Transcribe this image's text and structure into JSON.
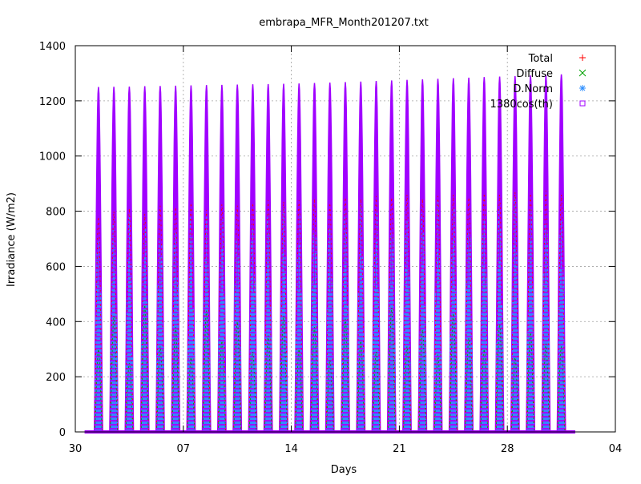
{
  "chart_data": {
    "type": "scatter",
    "title": "embrapa_MFR_Month201207.txt",
    "xlabel": "Days",
    "ylabel": "Irradiance (W/m2)",
    "xlim": [
      "2012-06-30",
      "2012-08-04"
    ],
    "ylim": [
      0,
      1400
    ],
    "x_ticks": [
      {
        "date": "2012-06-30",
        "label": "30"
      },
      {
        "date": "2012-07-07",
        "label": "07"
      },
      {
        "date": "2012-07-14",
        "label": "14"
      },
      {
        "date": "2012-07-21",
        "label": "21"
      },
      {
        "date": "2012-07-28",
        "label": "28"
      },
      {
        "date": "2012-08-04",
        "label": "04"
      }
    ],
    "y_ticks": [
      0,
      200,
      400,
      600,
      800,
      1000,
      1200,
      1400
    ],
    "grid": true,
    "legend_position": "top-right",
    "series": [
      {
        "name": "Total",
        "marker": "+",
        "color": "#ff0000"
      },
      {
        "name": "Diffuse",
        "marker": "x",
        "color": "#00a000"
      },
      {
        "name": "D.Norm",
        "marker": "*",
        "color": "#2f8fff"
      },
      {
        "name": "1380cos(th)",
        "marker": "square",
        "color": "#a000ff"
      }
    ],
    "daily_peaks": {
      "dates": [
        "2012-07-01",
        "2012-07-02",
        "2012-07-03",
        "2012-07-04",
        "2012-07-05",
        "2012-07-06",
        "2012-07-07",
        "2012-07-08",
        "2012-07-09",
        "2012-07-10",
        "2012-07-11",
        "2012-07-12",
        "2012-07-13",
        "2012-07-14",
        "2012-07-15",
        "2012-07-16",
        "2012-07-17",
        "2012-07-18",
        "2012-07-19",
        "2012-07-20",
        "2012-07-21",
        "2012-07-22",
        "2012-07-23",
        "2012-07-24",
        "2012-07-25",
        "2012-07-26",
        "2012-07-27",
        "2012-07-28",
        "2012-07-29",
        "2012-07-30",
        "2012-07-31"
      ],
      "cos_peak": [
        1250,
        1251,
        1252,
        1253,
        1254,
        1255,
        1256,
        1257,
        1258,
        1259,
        1260,
        1261,
        1262,
        1263,
        1265,
        1266,
        1268,
        1270,
        1272,
        1274,
        1276,
        1278,
        1280,
        1282,
        1284,
        1286,
        1288,
        1290,
        1292,
        1294,
        1296
      ],
      "total_peak": [
        780,
        800,
        810,
        790,
        820,
        815,
        830,
        805,
        825,
        820,
        830,
        840,
        835,
        840,
        845,
        830,
        850,
        845,
        855,
        850,
        860,
        845,
        855,
        860,
        850,
        865,
        860,
        870,
        865,
        875,
        860
      ],
      "dnorm_peak": [
        760,
        780,
        790,
        770,
        800,
        795,
        810,
        790,
        805,
        800,
        810,
        820,
        815,
        820,
        825,
        810,
        830,
        825,
        835,
        830,
        840,
        825,
        835,
        840,
        830,
        845,
        840,
        850,
        845,
        855,
        840
      ],
      "diffuse_peak": [
        300,
        420,
        250,
        460,
        310,
        380,
        270,
        440,
        330,
        400,
        290,
        350,
        420,
        300,
        380,
        260,
        410,
        330,
        290,
        450,
        310,
        370,
        280,
        430,
        340,
        300,
        390,
        270,
        360,
        320,
        310
      ]
    }
  }
}
